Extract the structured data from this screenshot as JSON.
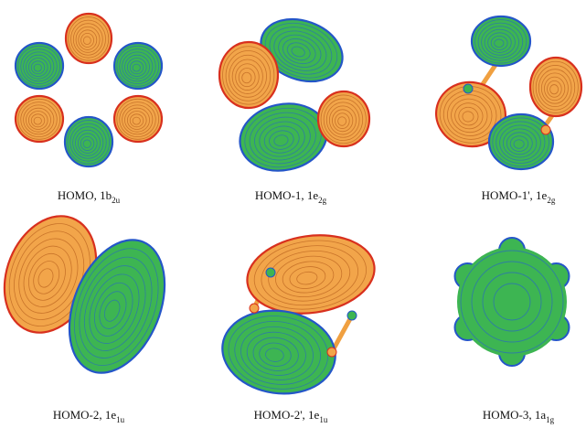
{
  "panels": [
    {
      "label": {
        "text": "HOMO, 1b",
        "subscript": "2u"
      }
    },
    {
      "label": {
        "text": "HOMO-1, 1e",
        "subscript": "2g"
      }
    },
    {
      "label": {
        "text": "HOMO-1', 1e",
        "subscript": "2g"
      }
    },
    {
      "label": {
        "text": "HOMO-2, 1e",
        "subscript": "1u"
      }
    },
    {
      "label": {
        "text": "HOMO-2', 1e",
        "subscript": "1u"
      }
    },
    {
      "label": {
        "text": "HOMO-3, 1a",
        "subscript": "1g"
      }
    }
  ]
}
